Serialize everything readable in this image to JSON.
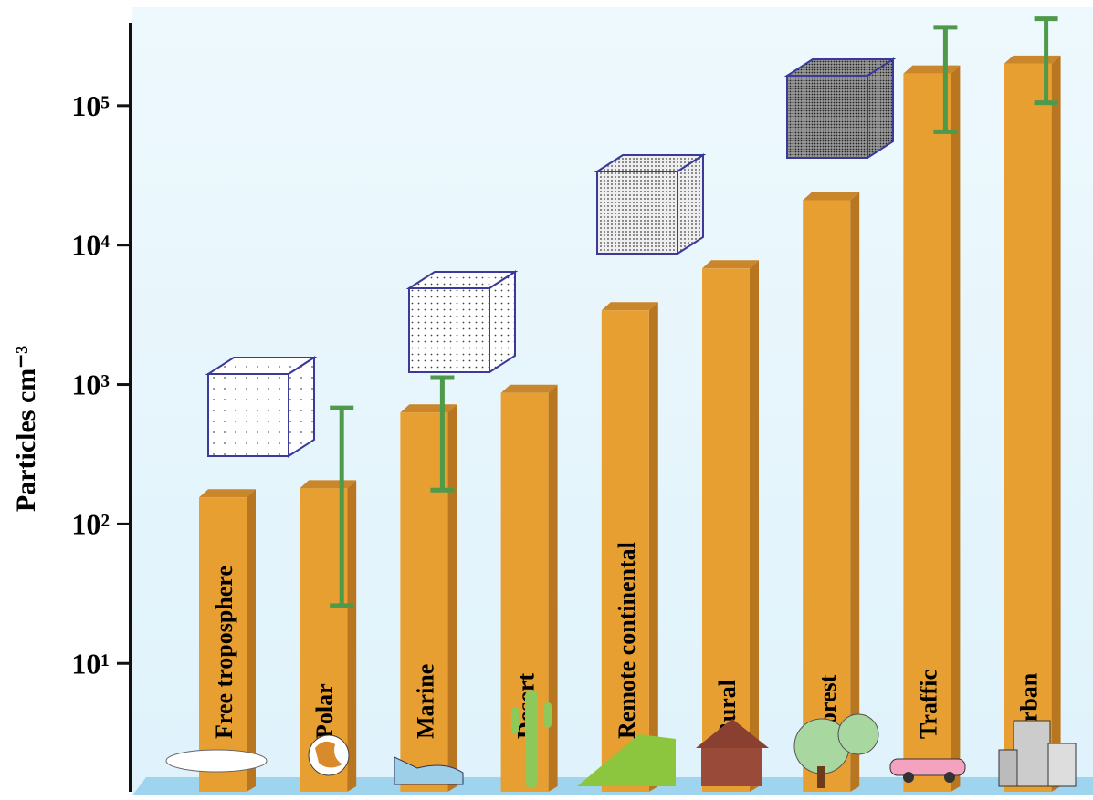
{
  "chart_data": {
    "type": "bar",
    "y_label": "Particles cm⁻³",
    "log_scale": true,
    "categories": [
      "Free troposphere",
      "Polar",
      "Marine",
      "Desert",
      "Remote continental",
      "Rural",
      "Forest",
      "Traffic",
      "Urban"
    ],
    "values": [
      155,
      180,
      630,
      870,
      3400,
      6800,
      21000,
      170000,
      200000
    ],
    "error_low": [
      null,
      26,
      175,
      null,
      null,
      null,
      null,
      65000,
      105000
    ],
    "error_high": [
      null,
      680,
      1120,
      null,
      null,
      null,
      null,
      365000,
      420000
    ],
    "color": "#e89f31",
    "error_color": "#4e9a4a",
    "ylim": [
      1.2,
      500000
    ],
    "yticks": [
      {
        "value": 10,
        "label": "10¹"
      },
      {
        "value": 100,
        "label": "10²"
      },
      {
        "value": 1000,
        "label": "10³"
      },
      {
        "value": 10000,
        "label": "10⁴"
      },
      {
        "value": 100000,
        "label": "10⁵"
      }
    ]
  }
}
